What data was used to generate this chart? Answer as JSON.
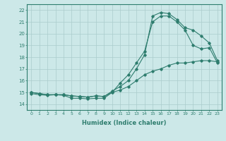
{
  "xlabel": "Humidex (Indice chaleur)",
  "xlim": [
    -0.5,
    23.5
  ],
  "ylim": [
    13.5,
    22.5
  ],
  "xticks": [
    0,
    1,
    2,
    3,
    4,
    5,
    6,
    7,
    8,
    9,
    10,
    11,
    12,
    13,
    14,
    15,
    16,
    17,
    18,
    19,
    20,
    21,
    22,
    23
  ],
  "yticks": [
    14,
    15,
    16,
    17,
    18,
    19,
    20,
    21,
    22
  ],
  "background_color": "#cce8e8",
  "grid_color": "#aacccc",
  "line_color": "#2e7d6e",
  "line1_x": [
    0,
    1,
    2,
    3,
    4,
    5,
    6,
    7,
    8,
    9,
    10,
    11,
    12,
    13,
    14,
    15,
    16,
    17,
    18,
    19,
    20,
    21,
    22,
    23
  ],
  "line1_y": [
    14.9,
    14.8,
    14.75,
    14.8,
    14.75,
    14.5,
    14.5,
    14.45,
    14.5,
    14.5,
    15.0,
    15.8,
    16.5,
    17.5,
    18.5,
    21.0,
    21.5,
    21.5,
    21.0,
    20.3,
    19.0,
    18.7,
    18.8,
    17.5
  ],
  "line2_x": [
    0,
    1,
    2,
    3,
    4,
    5,
    6,
    7,
    8,
    9,
    10,
    11,
    12,
    13,
    14,
    15,
    16,
    17,
    18,
    19,
    20,
    21,
    22,
    23
  ],
  "line2_y": [
    15.0,
    14.9,
    14.8,
    14.8,
    14.8,
    14.7,
    14.65,
    14.6,
    14.7,
    14.65,
    15.1,
    15.5,
    16.0,
    17.0,
    18.2,
    21.5,
    21.8,
    21.7,
    21.2,
    20.5,
    20.3,
    19.8,
    19.2,
    17.7
  ],
  "line3_x": [
    0,
    1,
    2,
    3,
    4,
    5,
    6,
    7,
    8,
    9,
    10,
    11,
    12,
    13,
    14,
    15,
    16,
    17,
    18,
    19,
    20,
    21,
    22,
    23
  ],
  "line3_y": [
    15.0,
    14.9,
    14.8,
    14.8,
    14.8,
    14.7,
    14.65,
    14.6,
    14.7,
    14.65,
    15.0,
    15.2,
    15.5,
    16.0,
    16.5,
    16.8,
    17.0,
    17.3,
    17.5,
    17.5,
    17.6,
    17.7,
    17.7,
    17.6
  ]
}
